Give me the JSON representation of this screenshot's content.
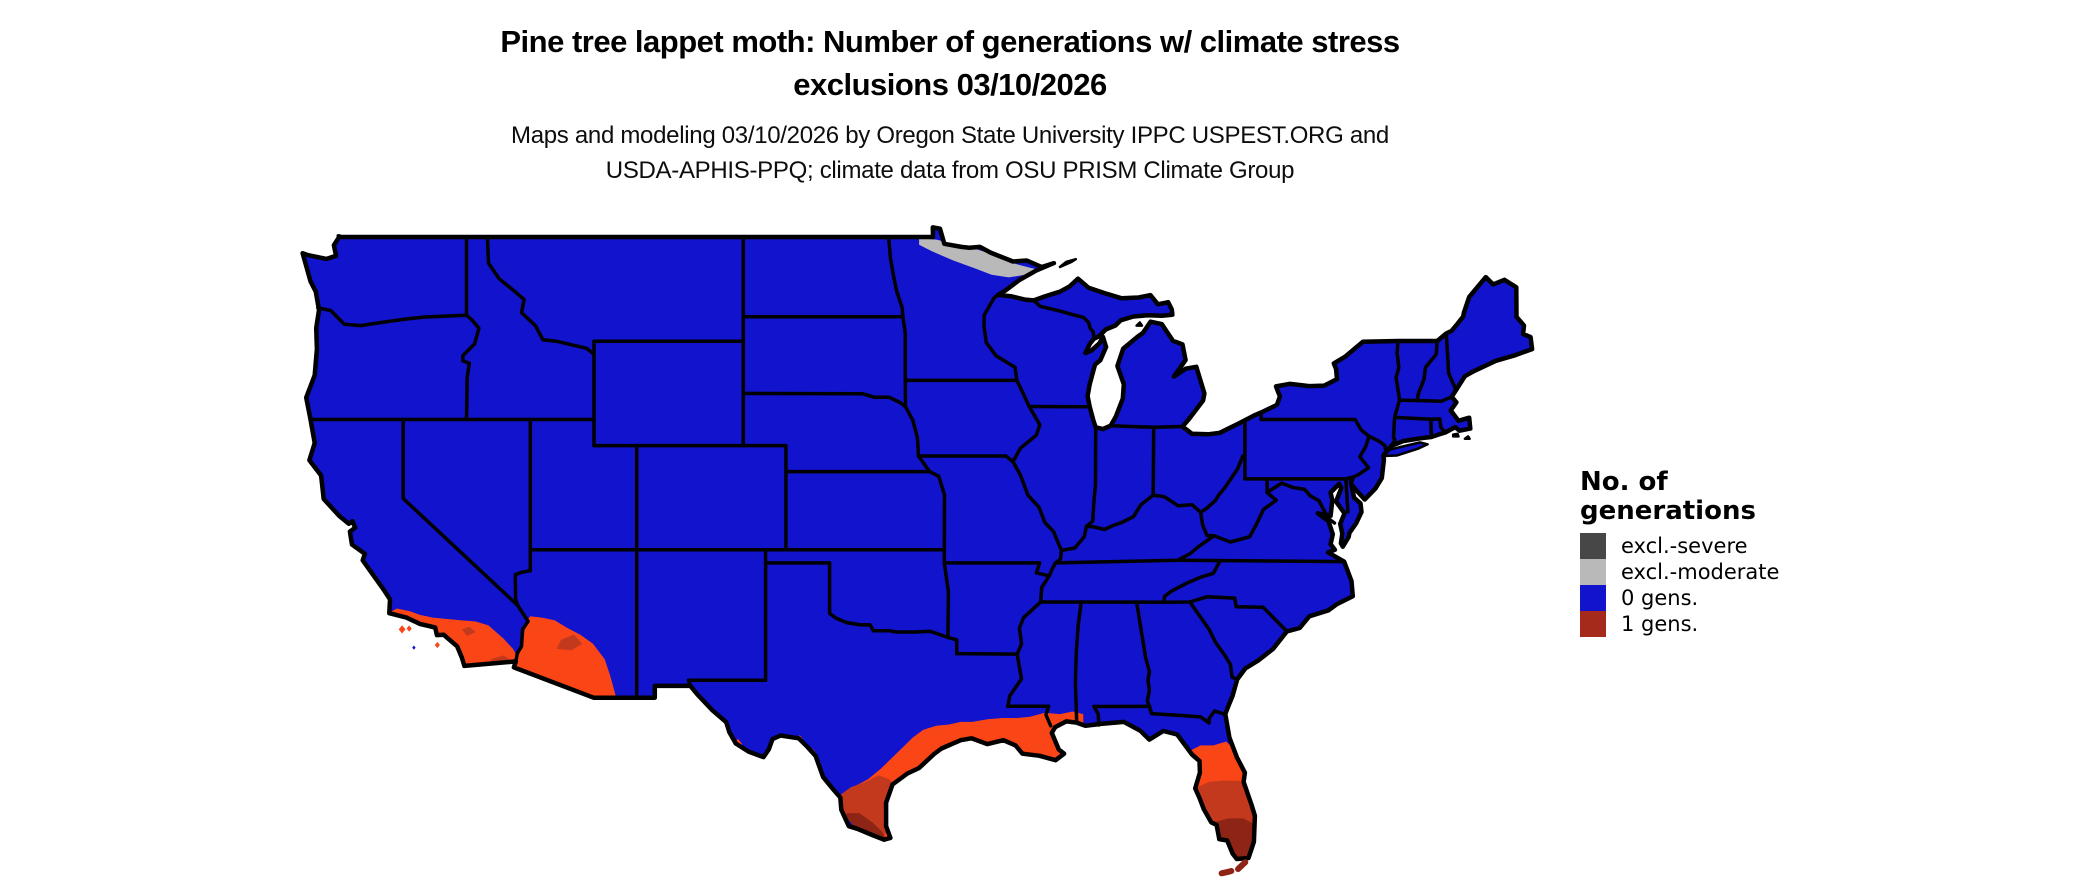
{
  "title": {
    "line1": "Pine tree lappet moth: Number of generations w/ climate stress",
    "line2": "exclusions 03/10/2026"
  },
  "subtitle": {
    "line1": "Maps and modeling 03/10/2026 by Oregon State University IPPC USPEST.ORG and",
    "line2": "USDA-APHIS-PPQ; climate data from OSU PRISM Climate Group"
  },
  "legend": {
    "title_line1": "No. of",
    "title_line2": "generations",
    "items": [
      {
        "label": "excl.-severe",
        "color": "#474747"
      },
      {
        "label": "excl.-moderate",
        "color": "#b9b9b9"
      },
      {
        "label": "0 gens.",
        "color": "#1113cd"
      },
      {
        "label": "1 gens.",
        "color": "#a62a1b"
      }
    ]
  },
  "map": {
    "region_label": "Contiguous United States",
    "colors": {
      "background": "#ffffff",
      "zero_gens_blue": "#1113cd",
      "one_gen_orange": "#fa4616",
      "one_gen_mid_red": "#c2391e",
      "one_gen_dark_red": "#8e2415",
      "excl_moderate_gray": "#b9b9b9",
      "excl_severe_gray": "#474747",
      "state_border": "#000000"
    },
    "overlay_regions": [
      {
        "area": "northern Minnesota (arrowhead / Canadian border)",
        "status": "excl.-moderate"
      },
      {
        "area": "southern California coast and inland valleys",
        "status": "1 gens. (orange to red gradient)"
      },
      {
        "area": "southwestern Arizona (Yuma-Phoenix-Tucson)",
        "status": "1 gens. (orange to red gradient)"
      },
      {
        "area": "Texas Gulf Coast and Rio Grande Valley",
        "status": "1 gens. (orange to dark red gradient)"
      },
      {
        "area": "Louisiana / Mississippi / Alabama coast",
        "status": "1 gens."
      },
      {
        "area": "Florida peninsula south of ~29N and Florida Keys",
        "status": "1 gens. (orange to dark red gradient)"
      },
      {
        "area": "remainder of contiguous United States",
        "status": "0 gens."
      }
    ]
  }
}
